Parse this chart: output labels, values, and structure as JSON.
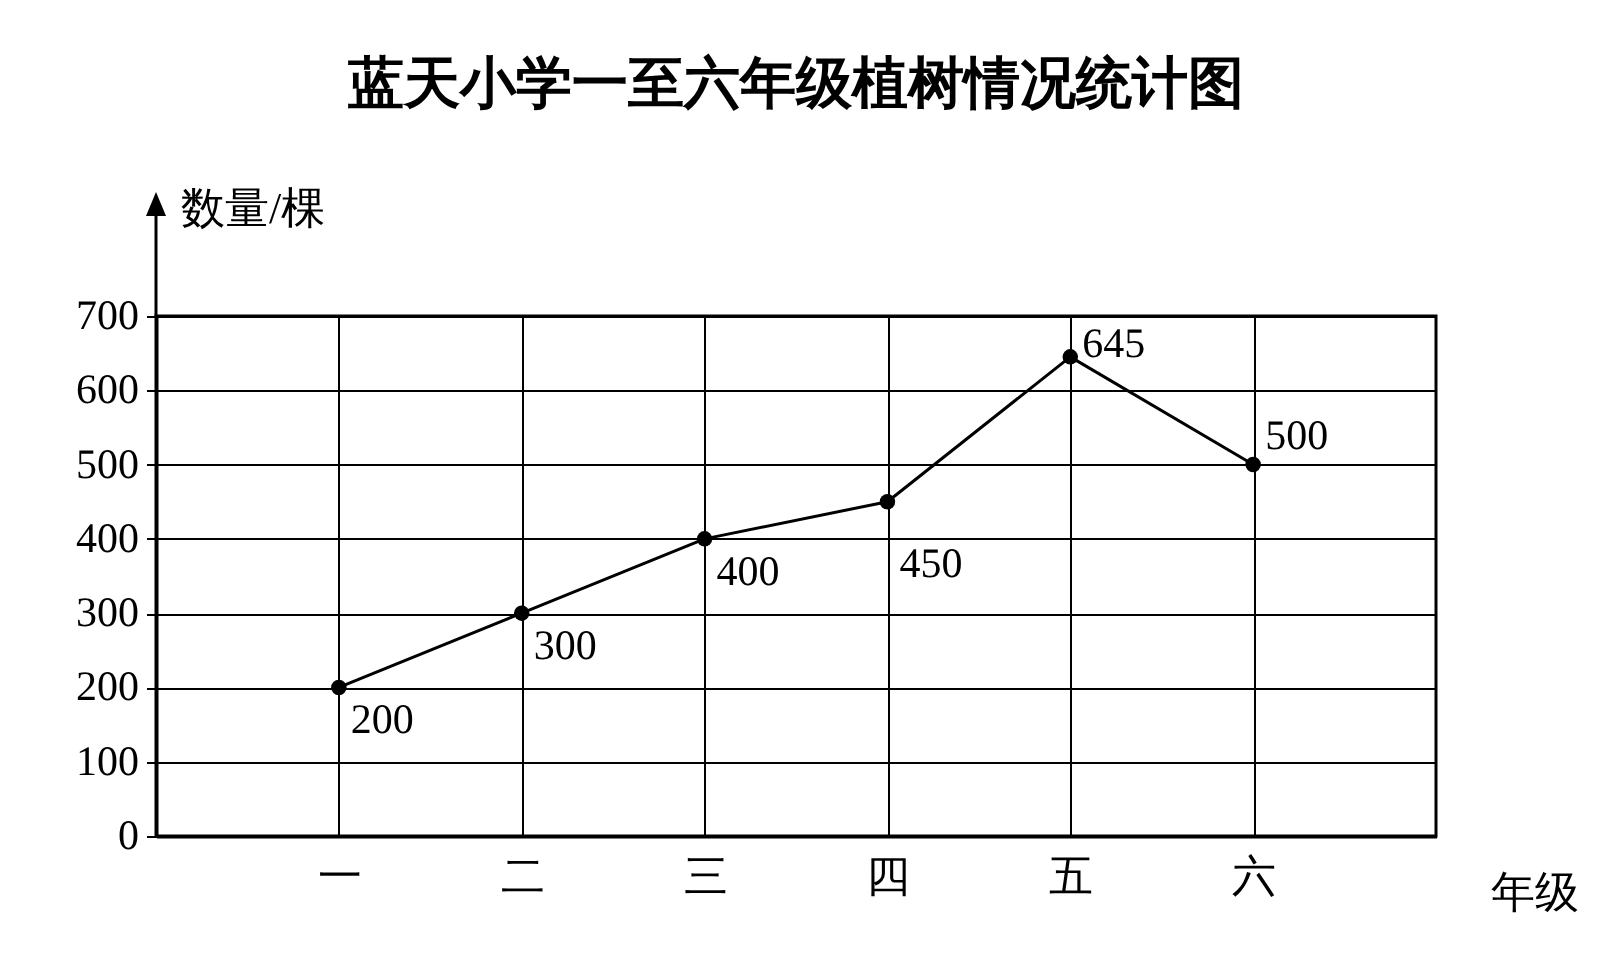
{
  "chart_data": {
    "type": "line",
    "title": "蓝天小学一至六年级植树情况统计图",
    "xlabel": "年级",
    "ylabel": "数量/棵",
    "categories": [
      "一",
      "二",
      "三",
      "四",
      "五",
      "六"
    ],
    "series": [
      {
        "color": "#000000",
        "values": [
          200,
          300,
          400,
          450,
          645,
          500
        ]
      }
    ],
    "ylim": [
      0,
      700
    ],
    "yticks": [
      0,
      100,
      200,
      300,
      400,
      500,
      600,
      700
    ],
    "grid": true,
    "marker": "circle",
    "data_labels": true
  }
}
